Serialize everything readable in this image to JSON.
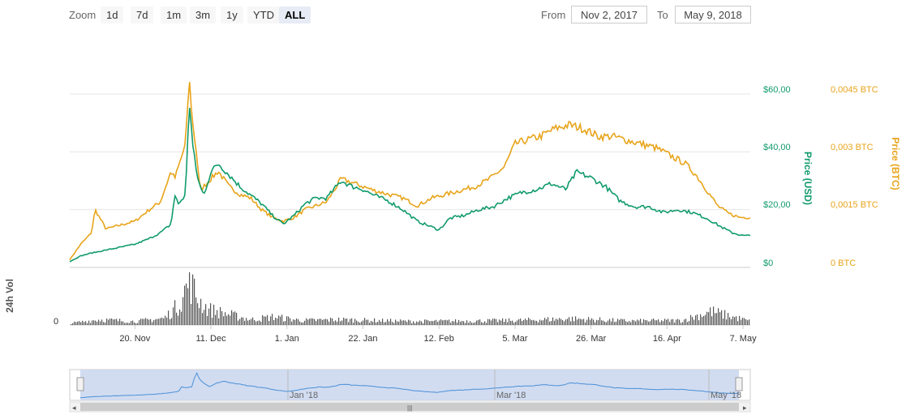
{
  "toolbar": {
    "zoom_label": "Zoom",
    "zoom_buttons": [
      "1d",
      "7d",
      "1m",
      "3m",
      "1y",
      "YTD",
      "ALL"
    ],
    "active_zoom": "ALL",
    "from_label": "From",
    "from_value": "Nov 2, 2017",
    "to_label": "To",
    "to_value": "May 9, 2018"
  },
  "colors": {
    "usd": "#119b6b",
    "btc": "#e8a41a",
    "volume": "#555555",
    "navigator_fill": "#c9d6ef",
    "navigator_line": "#4a8fd6"
  },
  "chart_data": {
    "type": "line",
    "x_range": [
      "2017-11-02",
      "2018-05-09"
    ],
    "x_tick_labels": [
      "20. Nov",
      "11. Dec",
      "1. Jan",
      "22. Jan",
      "12. Feb",
      "5. Mar",
      "26. Mar",
      "16. Apr",
      "7. May"
    ],
    "y_left": {
      "title": "Price (USD)",
      "range": [
        0,
        60
      ],
      "tick_labels": [
        "$0",
        "$20,00",
        "$40,00",
        "$60,00"
      ]
    },
    "y_right": {
      "title": "Price (BTC)",
      "range": [
        0,
        0.0045
      ],
      "tick_labels": [
        "0 BTC",
        "0,0015 BTC",
        "0,003 BTC",
        "0,0045 BTC"
      ]
    },
    "volume_axis": {
      "title": "24h Vol",
      "tick_labels": [
        "0"
      ]
    },
    "series": [
      {
        "axis": "usd",
        "points": [
          [
            "2017-11-02",
            2
          ],
          [
            "2017-11-05",
            4
          ],
          [
            "2017-11-08",
            5
          ],
          [
            "2017-11-12",
            6
          ],
          [
            "2017-11-16",
            7
          ],
          [
            "2017-11-20",
            8
          ],
          [
            "2017-11-24",
            10
          ],
          [
            "2017-11-27",
            12
          ],
          [
            "2017-11-30",
            15
          ],
          [
            "2017-12-01",
            25
          ],
          [
            "2017-12-02",
            22
          ],
          [
            "2017-12-04",
            25
          ],
          [
            "2017-12-05",
            58
          ],
          [
            "2017-12-06",
            42
          ],
          [
            "2017-12-07",
            33
          ],
          [
            "2017-12-08",
            28
          ],
          [
            "2017-12-09",
            25
          ],
          [
            "2017-12-11",
            33
          ],
          [
            "2017-12-13",
            36
          ],
          [
            "2017-12-16",
            32
          ],
          [
            "2017-12-19",
            28
          ],
          [
            "2017-12-22",
            25
          ],
          [
            "2017-12-25",
            22
          ],
          [
            "2017-12-28",
            18
          ],
          [
            "2017-12-31",
            15
          ],
          [
            "2018-01-03",
            18
          ],
          [
            "2018-01-06",
            22
          ],
          [
            "2018-01-09",
            24
          ],
          [
            "2018-01-12",
            24
          ],
          [
            "2018-01-16",
            30
          ],
          [
            "2018-01-19",
            28
          ],
          [
            "2018-01-22",
            27
          ],
          [
            "2018-01-25",
            25
          ],
          [
            "2018-01-29",
            23
          ],
          [
            "2018-02-02",
            20
          ],
          [
            "2018-02-06",
            16
          ],
          [
            "2018-02-10",
            14
          ],
          [
            "2018-02-12",
            13
          ],
          [
            "2018-02-15",
            17
          ],
          [
            "2018-02-19",
            18
          ],
          [
            "2018-02-23",
            20
          ],
          [
            "2018-02-27",
            21
          ],
          [
            "2018-03-03",
            24
          ],
          [
            "2018-03-07",
            26
          ],
          [
            "2018-03-11",
            27
          ],
          [
            "2018-03-15",
            29
          ],
          [
            "2018-03-19",
            27
          ],
          [
            "2018-03-22",
            33
          ],
          [
            "2018-03-26",
            31
          ],
          [
            "2018-03-30",
            28
          ],
          [
            "2018-04-03",
            23
          ],
          [
            "2018-04-07",
            21
          ],
          [
            "2018-04-11",
            21
          ],
          [
            "2018-04-15",
            19
          ],
          [
            "2018-04-19",
            20
          ],
          [
            "2018-04-23",
            19
          ],
          [
            "2018-04-27",
            17
          ],
          [
            "2018-05-01",
            14
          ],
          [
            "2018-05-04",
            12
          ],
          [
            "2018-05-07",
            11
          ],
          [
            "2018-05-09",
            11
          ]
        ]
      },
      {
        "axis": "btc",
        "points": [
          [
            "2017-11-02",
            0.0002
          ],
          [
            "2017-11-05",
            0.0006
          ],
          [
            "2017-11-08",
            0.0009
          ],
          [
            "2017-11-09",
            0.0015
          ],
          [
            "2017-11-12",
            0.001
          ],
          [
            "2017-11-16",
            0.0011
          ],
          [
            "2017-11-20",
            0.0012
          ],
          [
            "2017-11-24",
            0.0015
          ],
          [
            "2017-11-27",
            0.0017
          ],
          [
            "2017-11-30",
            0.0025
          ],
          [
            "2017-12-01",
            0.0023
          ],
          [
            "2017-12-04",
            0.0032
          ],
          [
            "2017-12-05",
            0.0049
          ],
          [
            "2017-12-06",
            0.0037
          ],
          [
            "2017-12-07",
            0.003
          ],
          [
            "2017-12-08",
            0.002
          ],
          [
            "2017-12-10",
            0.0022
          ],
          [
            "2017-12-13",
            0.0025
          ],
          [
            "2017-12-16",
            0.0021
          ],
          [
            "2017-12-19",
            0.0019
          ],
          [
            "2017-12-22",
            0.0018
          ],
          [
            "2017-12-25",
            0.0015
          ],
          [
            "2017-12-28",
            0.0013
          ],
          [
            "2017-12-31",
            0.0012
          ],
          [
            "2018-01-03",
            0.0013
          ],
          [
            "2018-01-06",
            0.0015
          ],
          [
            "2018-01-09",
            0.0016
          ],
          [
            "2018-01-12",
            0.0017
          ],
          [
            "2018-01-16",
            0.0023
          ],
          [
            "2018-01-19",
            0.0022
          ],
          [
            "2018-01-22",
            0.0021
          ],
          [
            "2018-01-25",
            0.002
          ],
          [
            "2018-01-29",
            0.0019
          ],
          [
            "2018-02-02",
            0.0018
          ],
          [
            "2018-02-06",
            0.0016
          ],
          [
            "2018-02-10",
            0.0018
          ],
          [
            "2018-02-14",
            0.0019
          ],
          [
            "2018-02-18",
            0.002
          ],
          [
            "2018-02-22",
            0.0021
          ],
          [
            "2018-02-26",
            0.0023
          ],
          [
            "2018-03-02",
            0.0026
          ],
          [
            "2018-03-05",
            0.0032
          ],
          [
            "2018-03-08",
            0.0033
          ],
          [
            "2018-03-12",
            0.0034
          ],
          [
            "2018-03-16",
            0.0036
          ],
          [
            "2018-03-20",
            0.0037
          ],
          [
            "2018-03-24",
            0.0036
          ],
          [
            "2018-03-28",
            0.0034
          ],
          [
            "2018-04-01",
            0.0034
          ],
          [
            "2018-04-05",
            0.0033
          ],
          [
            "2018-04-09",
            0.0032
          ],
          [
            "2018-04-13",
            0.0031
          ],
          [
            "2018-04-17",
            0.0029
          ],
          [
            "2018-04-21",
            0.0027
          ],
          [
            "2018-04-24",
            0.0024
          ],
          [
            "2018-04-27",
            0.002
          ],
          [
            "2018-04-30",
            0.0016
          ],
          [
            "2018-05-03",
            0.0014
          ],
          [
            "2018-05-06",
            0.0013
          ],
          [
            "2018-05-09",
            0.0013
          ]
        ]
      }
    ],
    "volume_profile": [
      [
        "2017-11-02",
        0.04
      ],
      [
        "2017-11-10",
        0.12
      ],
      [
        "2017-11-20",
        0.08
      ],
      [
        "2017-11-28",
        0.15
      ],
      [
        "2017-12-02",
        0.45
      ],
      [
        "2017-12-05",
        1.0
      ],
      [
        "2017-12-07",
        0.6
      ],
      [
        "2017-12-10",
        0.35
      ],
      [
        "2017-12-15",
        0.25
      ],
      [
        "2017-12-22",
        0.12
      ],
      [
        "2017-12-28",
        0.18
      ],
      [
        "2018-01-05",
        0.1
      ],
      [
        "2018-01-15",
        0.12
      ],
      [
        "2018-01-25",
        0.1
      ],
      [
        "2018-02-05",
        0.08
      ],
      [
        "2018-02-20",
        0.09
      ],
      [
        "2018-03-05",
        0.1
      ],
      [
        "2018-03-20",
        0.14
      ],
      [
        "2018-04-05",
        0.09
      ],
      [
        "2018-04-20",
        0.1
      ],
      [
        "2018-04-28",
        0.3
      ],
      [
        "2018-05-09",
        0.08
      ]
    ],
    "navigator": {
      "x_tick_labels": [
        "Jan '18",
        "Mar '18",
        "May '18"
      ]
    },
    "grid": true,
    "legend": "none"
  }
}
